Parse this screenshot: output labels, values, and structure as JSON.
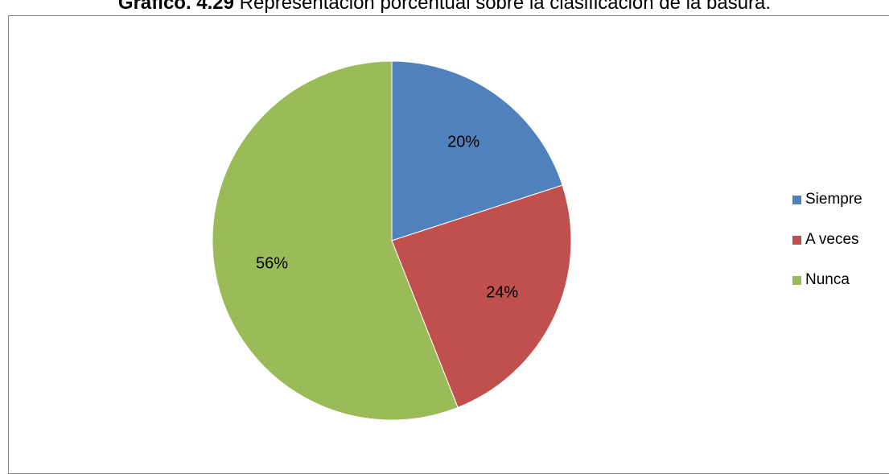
{
  "caption": {
    "bold": "Gráfico. 4.29",
    "text": " Representación porcentual sobre la clasificación de la basura."
  },
  "chart_data": {
    "type": "pie",
    "categories": [
      "Siempre",
      "A veces",
      "Nunca"
    ],
    "values": [
      20,
      24,
      56
    ],
    "labels": [
      "20%",
      "24%",
      "56%"
    ],
    "colors": [
      "#4F81BD",
      "#C0504D",
      "#9BBB59"
    ],
    "legend_position": "right",
    "start_angle_deg": 0,
    "direction": "clockwise"
  }
}
